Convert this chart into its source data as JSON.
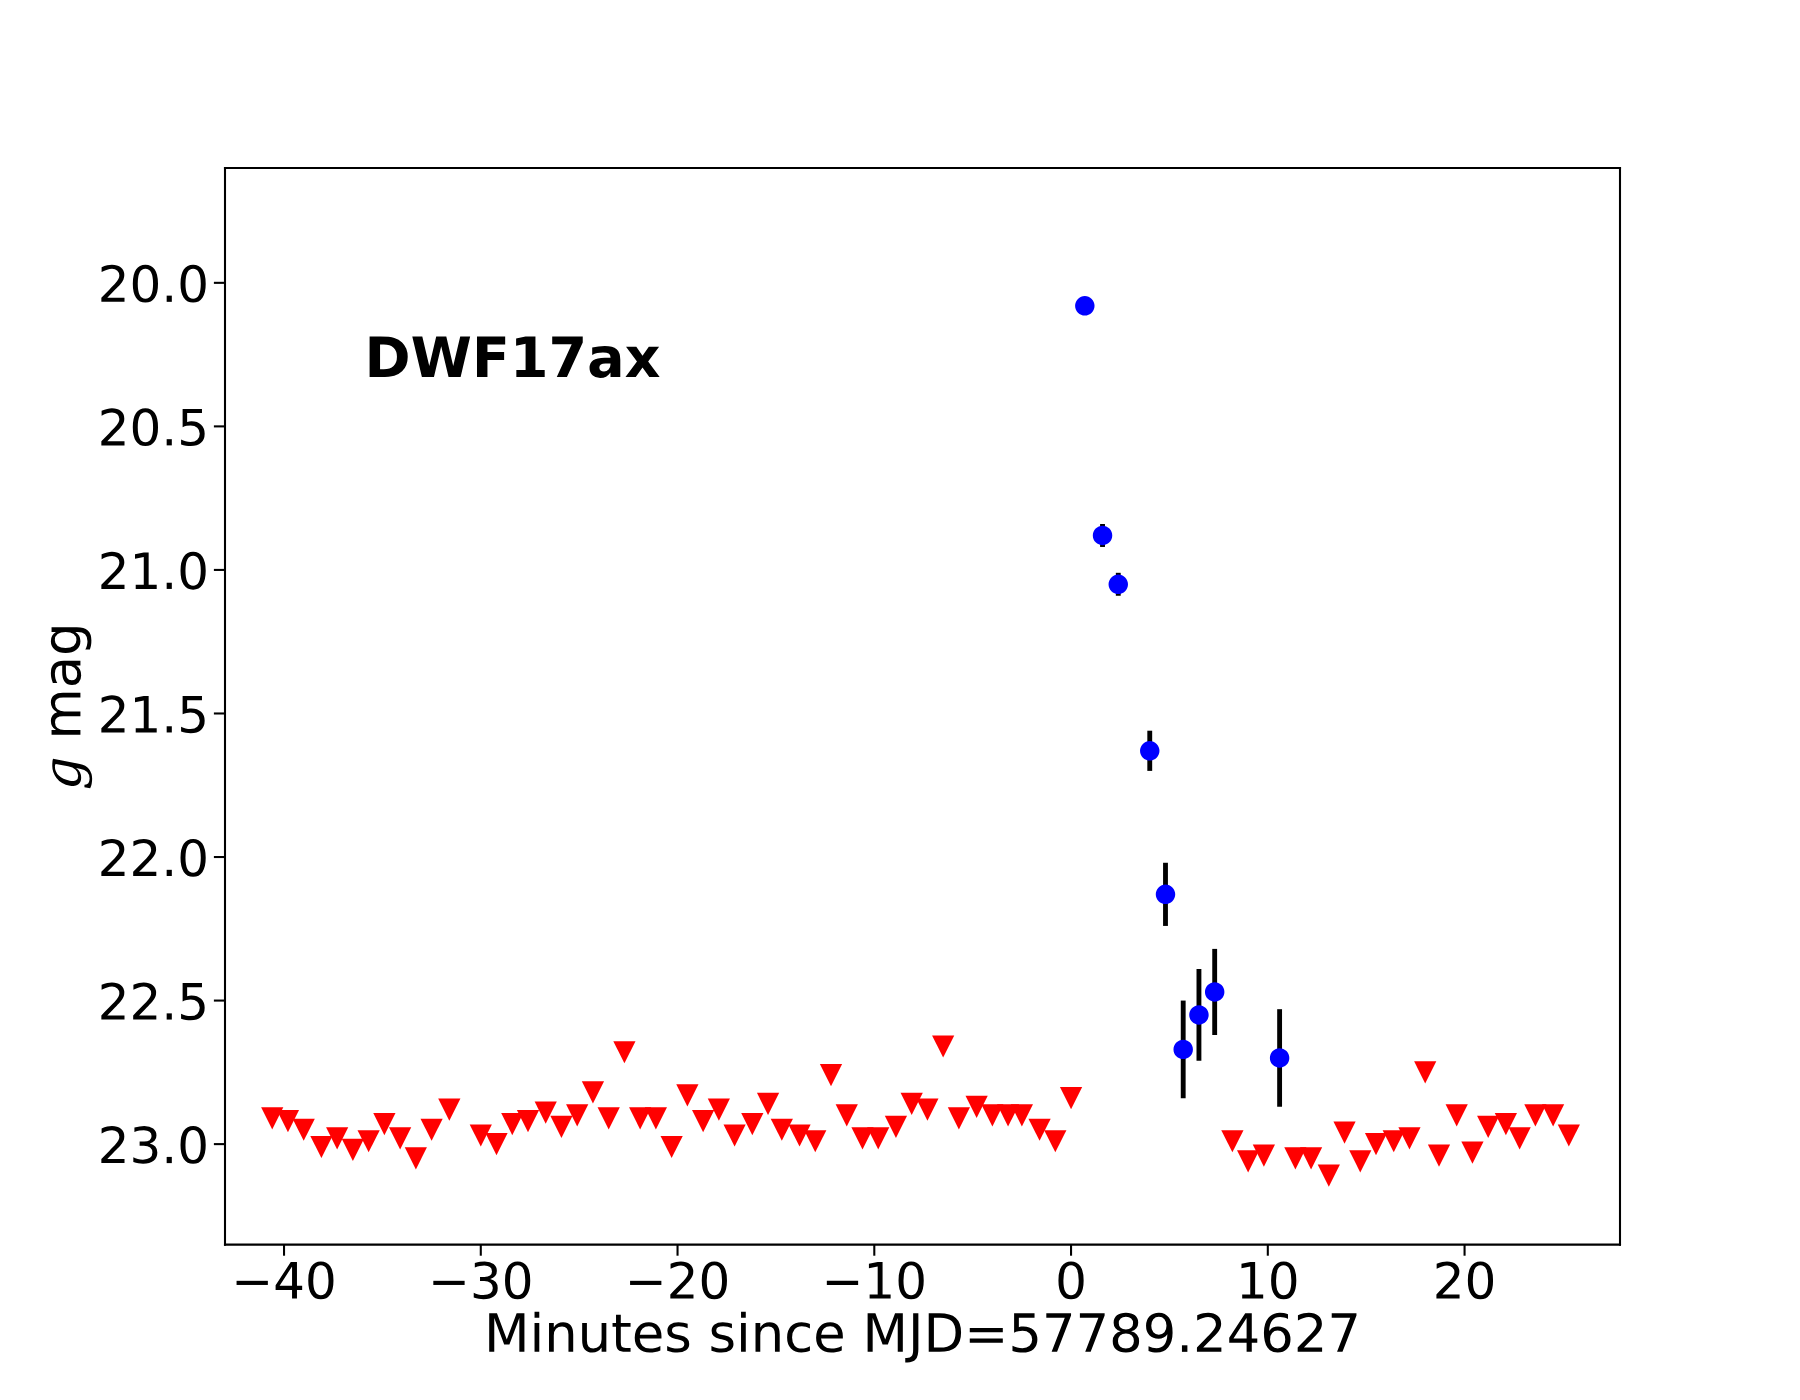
{
  "chart_data": {
    "type": "scatter",
    "xlabel": "Minutes since MJD=57789.24627",
    "ylabel": "𝑔 mag",
    "annotations": [
      "DWF17ax"
    ],
    "xlim": [
      -43.0,
      27.9
    ],
    "xticks": [
      {
        "value": -40,
        "label": "−40"
      },
      {
        "value": -30,
        "label": "−30"
      },
      {
        "value": -20,
        "label": "−20"
      },
      {
        "value": -10,
        "label": "−10"
      },
      0,
      10,
      20
    ],
    "ylim": [
      23.35,
      19.6
    ],
    "yticks": [
      {
        "value": 20,
        "label": "20.0"
      },
      20.5,
      {
        "value": 21,
        "label": "21.0"
      },
      21.5,
      {
        "value": 22,
        "label": "22.0"
      },
      22.5,
      {
        "value": 23,
        "label": "23.0"
      }
    ],
    "grid": false,
    "legend": false,
    "series": [
      {
        "color": "#ff0000",
        "marker": "triangle",
        "x": [
          -40.6,
          -39.8,
          -39.0,
          -38.1,
          -37.3,
          -36.5,
          -35.7,
          -34.9,
          -34.1,
          -33.3,
          -32.5,
          -31.6,
          -30.0,
          -29.2,
          -28.4,
          -27.6,
          -26.7,
          -25.9,
          -25.1,
          -24.3,
          -23.5,
          -22.7,
          -21.9,
          -21.1,
          -20.3,
          -19.5,
          -18.7,
          -17.9,
          -17.1,
          -16.2,
          -15.4,
          -14.7,
          -13.8,
          -13.0,
          -12.2,
          -11.4,
          -10.6,
          -9.8,
          -8.9,
          -8.1,
          -7.3,
          -6.5,
          -5.7,
          -4.8,
          -4.0,
          -3.2,
          -2.5,
          -1.6,
          -0.8,
          0.0,
          8.2,
          9.0,
          9.8,
          11.4,
          12.2,
          13.1,
          13.9,
          14.7,
          15.5,
          16.4,
          17.2,
          18.0,
          18.7,
          19.6,
          20.4,
          21.2,
          22.1,
          22.8,
          23.6,
          24.5,
          25.3
        ],
        "values": [
          22.91,
          22.92,
          22.95,
          23.01,
          22.98,
          23.02,
          22.99,
          22.93,
          22.98,
          23.05,
          22.95,
          22.88,
          22.97,
          23.0,
          22.93,
          22.92,
          22.89,
          22.94,
          22.9,
          22.82,
          22.91,
          22.68,
          22.91,
          22.91,
          23.01,
          22.83,
          22.92,
          22.88,
          22.97,
          22.93,
          22.86,
          22.95,
          22.97,
          22.99,
          22.76,
          22.9,
          22.98,
          22.98,
          22.94,
          22.86,
          22.88,
          22.66,
          22.91,
          22.87,
          22.9,
          22.9,
          22.9,
          22.95,
          22.99,
          22.84,
          22.99,
          23.06,
          23.04,
          23.05,
          23.05,
          23.11,
          22.96,
          23.06,
          23.0,
          22.99,
          22.98,
          22.75,
          23.04,
          22.9,
          23.03,
          22.94,
          22.93,
          22.98,
          22.9,
          22.9,
          22.97
        ]
      },
      {
        "color": "#0000ff",
        "marker": "circle",
        "x": [
          0.7,
          1.6,
          2.4,
          4.0,
          4.8,
          5.7,
          6.5,
          7.3,
          10.6
        ],
        "values": [
          20.08,
          20.88,
          21.05,
          21.63,
          22.13,
          22.67,
          22.55,
          22.47,
          22.7
        ],
        "errors": [
          null,
          0.04,
          0.04,
          0.07,
          0.11,
          0.17,
          0.16,
          0.15,
          0.17
        ]
      }
    ]
  }
}
